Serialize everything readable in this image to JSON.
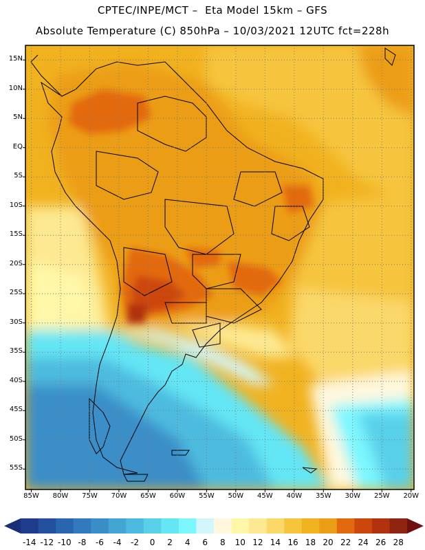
{
  "title_line1": "CPTEC/INPE/MCT –  Eta Model 15km – GFS",
  "title_line2": "Absolute Temperature (C) 850hPa – 10/03/2021 12UTC fct=228h",
  "lat_labels": [
    "15N",
    "10N",
    "5N",
    "EQ",
    "5S",
    "10S",
    "15S",
    "20S",
    "25S",
    "30S",
    "35S",
    "40S",
    "45S",
    "50S",
    "55S"
  ],
  "lon_labels": [
    "85W",
    "80W",
    "75W",
    "70W",
    "65W",
    "60W",
    "55W",
    "50W",
    "45W",
    "40W",
    "35W",
    "30W",
    "25W",
    "20W"
  ],
  "colorbar": {
    "labels": [
      "-14",
      "-12",
      "-10",
      "-8",
      "-6",
      "-4",
      "-2",
      "0",
      "2",
      "4",
      "6",
      "8",
      "10",
      "12",
      "14",
      "16",
      "18",
      "20",
      "22",
      "24",
      "26",
      "28"
    ],
    "colors": [
      "#1e3c8c",
      "#23509f",
      "#2a65b0",
      "#3279bd",
      "#3a8ec8",
      "#43a5d4",
      "#4dbbdf",
      "#58d0ea",
      "#64e6f5",
      "#7df7ff",
      "#d3f6fb",
      "#fff8de",
      "#fff7a8",
      "#fde992",
      "#fbd86a",
      "#f6c53c",
      "#f1b21f",
      "#ec9d16",
      "#e3690f",
      "#cd470d",
      "#b1320d",
      "#8e2410"
    ],
    "low_color": "#1a2e79",
    "high_color": "#6e1010"
  },
  "regions": [
    {
      "name": "pacific-north",
      "color": "#f1b21f"
    },
    {
      "name": "north-atlantic",
      "color": "#f6c53c"
    },
    {
      "name": "south-atlantic",
      "color": "#f1b21f"
    },
    {
      "name": "continent-warm",
      "color": "#ec9d16"
    },
    {
      "name": "hot-core",
      "color": "#cd470d"
    },
    {
      "name": "cold-south",
      "color": "#43a5d4"
    }
  ]
}
